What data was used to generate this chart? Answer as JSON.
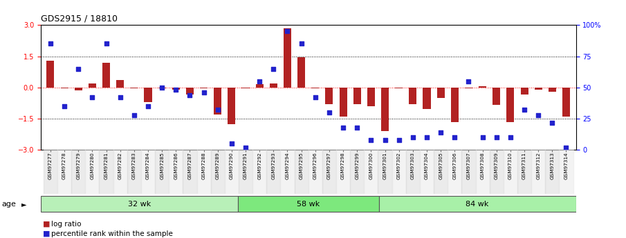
{
  "title": "GDS2915 / 18810",
  "samples": [
    "GSM97277",
    "GSM97278",
    "GSM97279",
    "GSM97280",
    "GSM97281",
    "GSM97282",
    "GSM97283",
    "GSM97284",
    "GSM97285",
    "GSM97286",
    "GSM97287",
    "GSM97288",
    "GSM97289",
    "GSM97290",
    "GSM97291",
    "GSM97292",
    "GSM97293",
    "GSM97294",
    "GSM97295",
    "GSM97296",
    "GSM97297",
    "GSM97298",
    "GSM97299",
    "GSM97300",
    "GSM97301",
    "GSM97302",
    "GSM97303",
    "GSM97304",
    "GSM97305",
    "GSM97306",
    "GSM97307",
    "GSM97308",
    "GSM97309",
    "GSM97310",
    "GSM97311",
    "GSM97312",
    "GSM97313",
    "GSM97314"
  ],
  "log_ratio": [
    1.3,
    -0.05,
    -0.15,
    0.2,
    1.2,
    0.35,
    -0.05,
    -0.7,
    -0.05,
    -0.1,
    -0.35,
    -0.05,
    -1.3,
    -1.75,
    -0.05,
    0.15,
    0.2,
    2.85,
    1.45,
    -0.05,
    -0.8,
    -1.4,
    -0.8,
    -0.9,
    -2.1,
    -0.05,
    -0.8,
    -1.05,
    -0.5,
    -1.65,
    -0.05,
    0.05,
    -0.85,
    -1.65,
    -0.35,
    -0.1,
    -0.2,
    -1.4
  ],
  "percentile": [
    85,
    35,
    65,
    42,
    85,
    42,
    28,
    35,
    50,
    48,
    44,
    46,
    32,
    5,
    2,
    55,
    65,
    95,
    85,
    42,
    30,
    18,
    18,
    8,
    8,
    8,
    10,
    10,
    14,
    10,
    55,
    10,
    10,
    10,
    32,
    28,
    22,
    2
  ],
  "groups": [
    {
      "label": "32 wk",
      "start": 0,
      "end": 14
    },
    {
      "label": "58 wk",
      "start": 14,
      "end": 24
    },
    {
      "label": "84 wk",
      "start": 24,
      "end": 38
    }
  ],
  "group_colors": [
    "#b8f0b8",
    "#7de87d",
    "#a8f0a8"
  ],
  "bar_color": "#b22222",
  "dot_color": "#2222cc",
  "ylim": [
    -3,
    3
  ],
  "y2lim": [
    0,
    100
  ],
  "yticks": [
    -3,
    -1.5,
    0,
    1.5,
    3
  ],
  "y2ticks": [
    0,
    25,
    50,
    75,
    100
  ],
  "y2ticklabels": [
    "0",
    "25",
    "50",
    "75",
    "100%"
  ],
  "hlines": [
    -1.5,
    0,
    1.5
  ],
  "age_label": "age",
  "legend_bar": "log ratio",
  "legend_dot": "percentile rank within the sample",
  "bg_color": "#f0f0f0"
}
